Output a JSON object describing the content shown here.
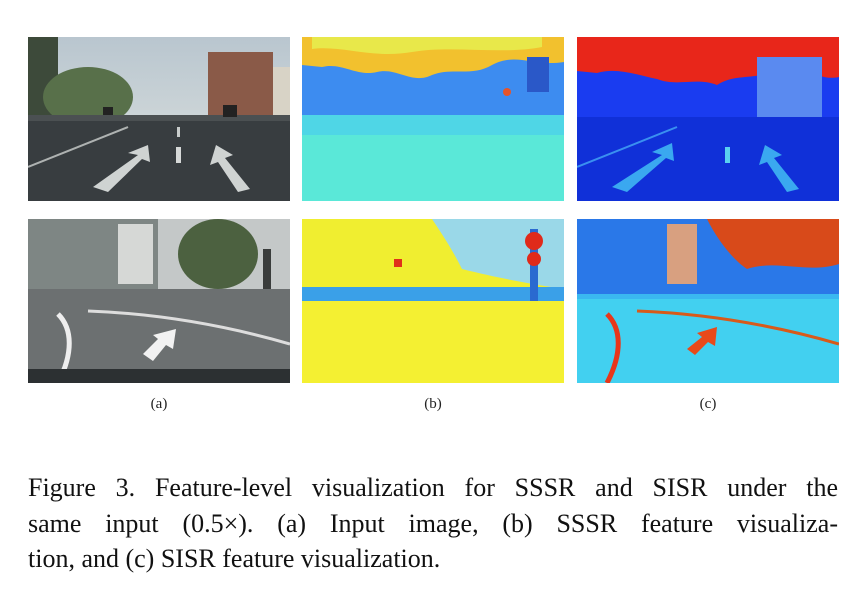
{
  "figure": {
    "panel_labels": [
      "(a)",
      "(b)",
      "(c)"
    ],
    "caption_lines": [
      "Figure 3. Feature-level visualization for SSSR and SISR under the",
      "same input (0.5×).  (a) Input image, (b) SSSR feature visualiza-",
      "tion, and (c) SISR feature visualization."
    ]
  }
}
